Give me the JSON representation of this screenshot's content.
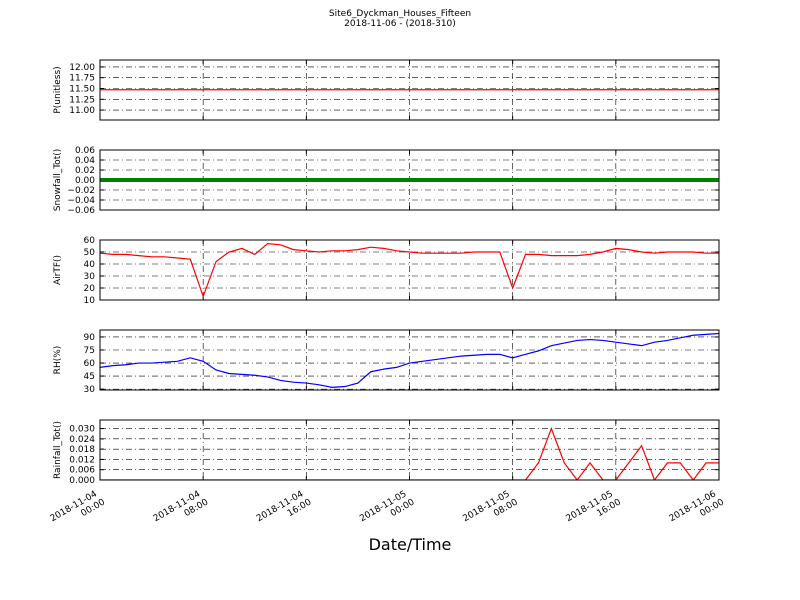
{
  "chart_data": [
    {
      "type": "line",
      "title": "Site6_Dyckman_Houses_Fifteen",
      "subtitle": "2018-11-06 - (2018-310)",
      "ylabel": "P(unitless)",
      "ylim": [
        10.77,
        12.16
      ],
      "yticks": [
        {
          "value": 11,
          "label": "11.00"
        },
        {
          "value": 11.25,
          "label": "11.25"
        },
        {
          "value": 11.5,
          "label": "11.50"
        },
        {
          "value": 11.75,
          "label": "11.75"
        },
        {
          "value": 12,
          "label": "12.00"
        }
      ],
      "grid": true,
      "series": [
        {
          "color": "#ff0000",
          "values": [
            11.47,
            11.47,
            11.47,
            11.47,
            11.47,
            11.47,
            11.47,
            11.47,
            11.47,
            11.47,
            11.47,
            11.47,
            11.47,
            11.47,
            11.47,
            11.47,
            11.47,
            11.47,
            11.47,
            11.47,
            11.47,
            11.47,
            11.47,
            11.47,
            11.47,
            11.47,
            11.47,
            11.47,
            11.47,
            11.47,
            11.47,
            11.47,
            11.47,
            11.47,
            11.47,
            11.47,
            11.47,
            11.47,
            11.47,
            11.47,
            11.47,
            11.47,
            11.47,
            11.47,
            11.47,
            11.47,
            11.47,
            11.47,
            11.47
          ]
        }
      ]
    },
    {
      "type": "line",
      "ylabel": "Snowfall_Tot()",
      "ylim": [
        -0.06,
        0.06
      ],
      "yticks": [
        {
          "value": -0.06,
          "label": "−0.06"
        },
        {
          "value": -0.04,
          "label": "−0.04"
        },
        {
          "value": -0.02,
          "label": "−0.02"
        },
        {
          "value": 0,
          "label": "0.00"
        },
        0.02,
        0.04,
        0.06
      ],
      "grid": true,
      "series": [
        {
          "color": "#008000",
          "values": [
            0,
            0,
            0,
            0,
            0,
            0,
            0,
            0,
            0,
            0,
            0,
            0,
            0,
            0,
            0,
            0,
            0,
            0,
            0,
            0,
            0,
            0,
            0,
            0,
            0,
            0,
            0,
            0,
            0,
            0,
            0,
            0,
            0,
            0,
            0,
            0,
            0,
            0,
            0,
            0,
            0,
            0,
            0,
            0,
            0,
            0,
            0,
            0,
            0
          ]
        }
      ]
    },
    {
      "type": "line",
      "ylabel": "AirTF()",
      "ylim": [
        10,
        60
      ],
      "yticks": [
        10,
        20,
        30,
        40,
        50,
        60
      ],
      "grid": true,
      "series": [
        {
          "color": "#ff0000",
          "values": [
            49,
            48,
            48,
            47,
            46,
            46,
            45,
            44,
            13,
            42,
            50,
            53,
            48,
            57,
            56,
            52,
            51,
            50,
            51,
            51,
            52,
            54,
            53,
            51,
            50,
            49,
            49,
            49,
            49,
            50,
            50,
            50,
            20,
            48,
            48,
            47,
            47,
            47,
            48,
            50,
            53,
            52,
            50,
            49,
            50,
            50,
            50,
            49,
            49
          ]
        }
      ]
    },
    {
      "type": "line",
      "ylabel": "RH(%)",
      "ylim": [
        29,
        98
      ],
      "yticks": [
        30,
        45,
        60,
        75,
        90
      ],
      "grid": true,
      "series": [
        {
          "color": "#0000ff",
          "values": [
            55,
            57,
            58,
            60,
            60,
            61,
            62,
            66,
            62,
            52,
            48,
            47,
            46,
            44,
            40,
            38,
            37,
            35,
            32,
            33,
            37,
            50,
            53,
            55,
            60,
            62,
            64,
            66,
            68,
            69,
            70,
            70,
            66,
            70,
            74,
            80,
            83,
            86,
            87,
            86,
            84,
            82,
            80,
            84,
            86,
            89,
            92,
            93,
            94
          ]
        }
      ]
    },
    {
      "type": "line",
      "ylabel": "Rainfall_Tot()",
      "xlabel": "Date/Time",
      "ylim": [
        0,
        0.035
      ],
      "yticks": [
        {
          "value": 0,
          "label": "0.000"
        },
        {
          "value": 0.006,
          "label": "0.006"
        },
        {
          "value": 0.012,
          "label": "0.012"
        },
        {
          "value": 0.018,
          "label": "0.018"
        },
        {
          "value": 0.024,
          "label": "0.024"
        },
        {
          "value": 0.03,
          "label": "0.030"
        }
      ],
      "grid": true,
      "xlim": [
        "2018-11-04 00:00",
        "2018-11-06 00:00"
      ],
      "xticks": [
        "2018-11-04 00:00",
        "2018-11-04 08:00",
        "2018-11-04 16:00",
        "2018-11-05 00:00",
        "2018-11-05 08:00",
        "2018-11-05 16:00",
        "2018-11-06 00:00"
      ],
      "x": [
        "2018-11-04 00:00",
        "2018-11-04 01:00",
        "2018-11-04 02:00",
        "2018-11-04 03:00",
        "2018-11-04 04:00",
        "2018-11-04 05:00",
        "2018-11-04 06:00",
        "2018-11-04 07:00",
        "2018-11-04 08:00",
        "2018-11-04 09:00",
        "2018-11-04 10:00",
        "2018-11-04 11:00",
        "2018-11-04 12:00",
        "2018-11-04 13:00",
        "2018-11-04 14:00",
        "2018-11-04 15:00",
        "2018-11-04 16:00",
        "2018-11-04 17:00",
        "2018-11-04 18:00",
        "2018-11-04 19:00",
        "2018-11-04 20:00",
        "2018-11-04 21:00",
        "2018-11-04 22:00",
        "2018-11-04 23:00",
        "2018-11-05 00:00",
        "2018-11-05 01:00",
        "2018-11-05 02:00",
        "2018-11-05 03:00",
        "2018-11-05 04:00",
        "2018-11-05 05:00",
        "2018-11-05 06:00",
        "2018-11-05 07:00",
        "2018-11-05 08:00",
        "2018-11-05 09:00",
        "2018-11-05 10:00",
        "2018-11-05 11:00",
        "2018-11-05 12:00",
        "2018-11-05 13:00",
        "2018-11-05 14:00",
        "2018-11-05 15:00",
        "2018-11-05 16:00",
        "2018-11-05 17:00",
        "2018-11-05 18:00",
        "2018-11-05 19:00",
        "2018-11-05 20:00",
        "2018-11-05 21:00",
        "2018-11-05 22:00",
        "2018-11-05 23:00",
        "2018-11-06 00:00"
      ],
      "series": [
        {
          "color": "#ff0000",
          "values": [
            0,
            0,
            0,
            0,
            0,
            0,
            0,
            0,
            0,
            0,
            0,
            0,
            0,
            0,
            0,
            0,
            0,
            0,
            0,
            0,
            0,
            0,
            0,
            0,
            0,
            0,
            0,
            0,
            0,
            0,
            0,
            0,
            0,
            0,
            0.01,
            0.03,
            0.01,
            0,
            0.01,
            0,
            0,
            0.01,
            0.02,
            0,
            0.01,
            0.01,
            0,
            0.01,
            0.01
          ]
        }
      ]
    }
  ]
}
